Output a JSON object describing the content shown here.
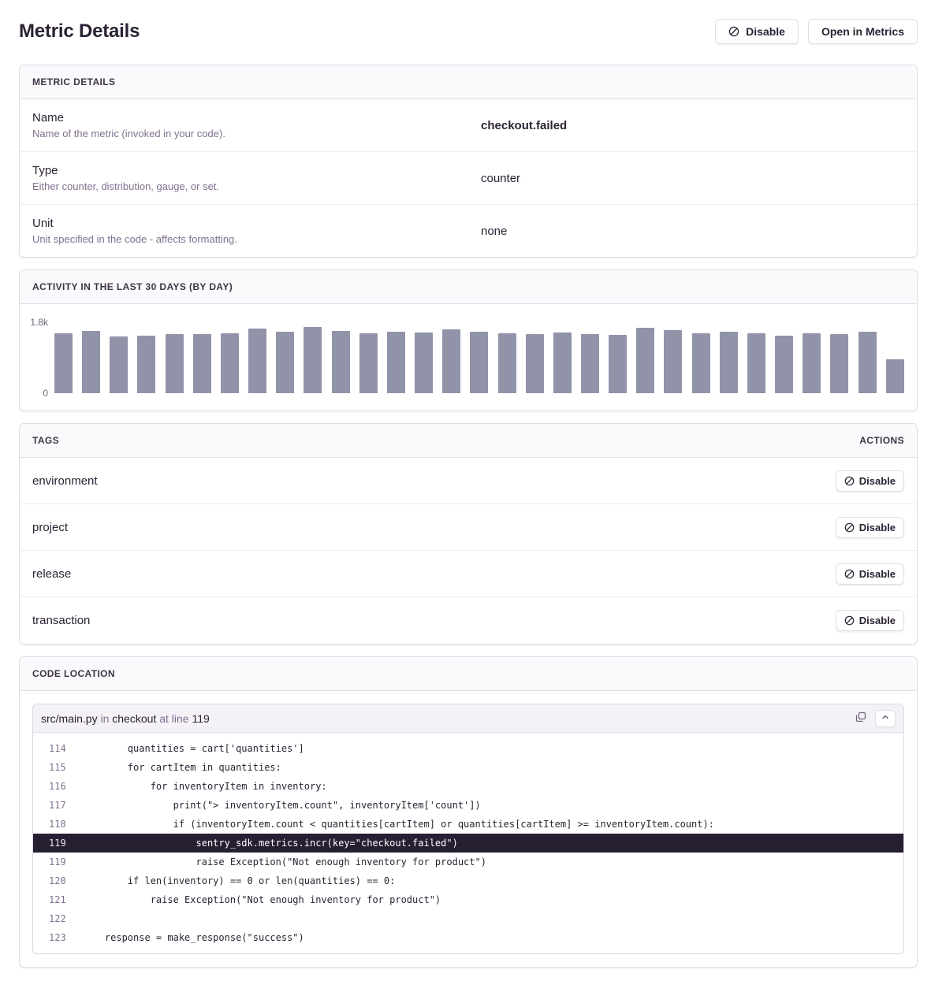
{
  "page": {
    "title": "Metric Details",
    "actions": {
      "disable_label": "Disable",
      "open_in_metrics_label": "Open in Metrics"
    }
  },
  "metric_details": {
    "header": "METRIC DETAILS",
    "rows": [
      {
        "label": "Name",
        "description": "Name of the metric (invoked in your code).",
        "value": "checkout.failed",
        "value_bold": true
      },
      {
        "label": "Type",
        "description": "Either counter, distribution, gauge, or set.",
        "value": "counter",
        "value_bold": false
      },
      {
        "label": "Unit",
        "description": "Unit specified in the code - affects formatting.",
        "value": "none",
        "value_bold": false
      }
    ]
  },
  "activity": {
    "header": "ACTIVITY IN THE LAST 30 DAYS (BY DAY)"
  },
  "chart_data": {
    "type": "bar",
    "title": "Activity in the last 30 days (by day)",
    "ylim": [
      0,
      1800
    ],
    "y_axis_labels": {
      "max": "1.8k",
      "min": "0"
    },
    "bar_color": "#9193a9",
    "grid": false,
    "values": [
      1520,
      1590,
      1450,
      1470,
      1500,
      1510,
      1530,
      1640,
      1560,
      1680,
      1580,
      1520,
      1560,
      1540,
      1630,
      1560,
      1530,
      1500,
      1550,
      1510,
      1480,
      1660,
      1610,
      1520,
      1560,
      1530,
      1460,
      1530,
      1510,
      1560,
      860
    ]
  },
  "tags": {
    "header": "TAGS",
    "actions_header": "ACTIONS",
    "disable_label": "Disable",
    "rows": [
      {
        "name": "environment"
      },
      {
        "name": "project"
      },
      {
        "name": "release"
      },
      {
        "name": "transaction"
      }
    ]
  },
  "code_location": {
    "header": "CODE LOCATION",
    "file": "src/main.py",
    "in_label": "in",
    "function": "checkout",
    "at_line_label": "at line",
    "line_number": "119",
    "lines": [
      {
        "num": "114",
        "code": "        quantities = cart['quantities']",
        "highlighted": false
      },
      {
        "num": "115",
        "code": "        for cartItem in quantities:",
        "highlighted": false
      },
      {
        "num": "116",
        "code": "            for inventoryItem in inventory:",
        "highlighted": false
      },
      {
        "num": "117",
        "code": "                print(\"> inventoryItem.count\", inventoryItem['count'])",
        "highlighted": false
      },
      {
        "num": "118",
        "code": "                if (inventoryItem.count < quantities[cartItem] or quantities[cartItem] >= inventoryItem.count):",
        "highlighted": false
      },
      {
        "num": "119",
        "code": "                    sentry_sdk.metrics.incr(key=\"checkout.failed\")",
        "highlighted": true
      },
      {
        "num": "119",
        "code": "                    raise Exception(\"Not enough inventory for product\")",
        "highlighted": false
      },
      {
        "num": "120",
        "code": "        if len(inventory) == 0 or len(quantities) == 0:",
        "highlighted": false
      },
      {
        "num": "121",
        "code": "            raise Exception(\"Not enough inventory for product\")",
        "highlighted": false
      },
      {
        "num": "122",
        "code": "",
        "highlighted": false
      },
      {
        "num": "123",
        "code": "    response = make_response(\"success\")",
        "highlighted": false
      }
    ]
  },
  "colors": {
    "text": "#2b2233",
    "muted_text": "#80708f",
    "border": "#e0dce5",
    "panel_header_bg": "#faf9fb",
    "bar": "#9193a9",
    "code_highlight_bg": "#261f32"
  }
}
